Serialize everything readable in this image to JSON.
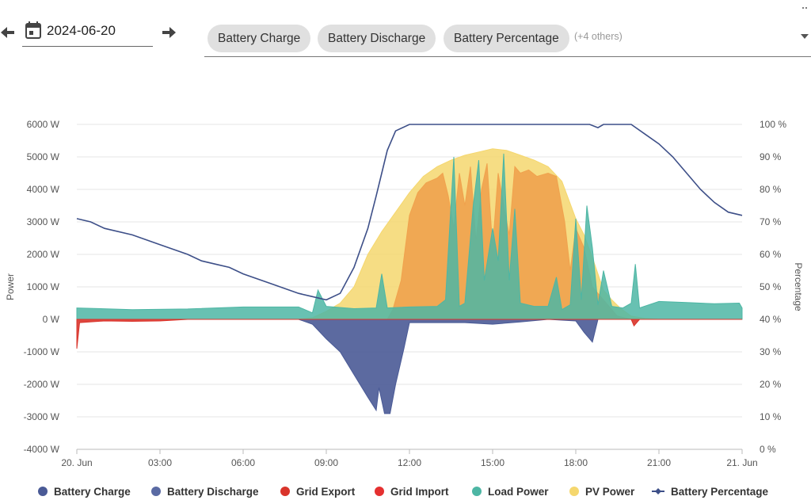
{
  "toolbar": {
    "date": "2024-06-20",
    "chips": [
      "Battery Charge",
      "Battery Discharge",
      "Battery Percentage"
    ],
    "others": "(+4 others)"
  },
  "chart_data": {
    "type": "area",
    "xlabel": "",
    "ylabel": "Power",
    "y2label": "Percentage",
    "x_range_hours": [
      0,
      24
    ],
    "x_ticks": [
      {
        "h": 0,
        "label": "20. Jun"
      },
      {
        "h": 3,
        "label": "03:00"
      },
      {
        "h": 6,
        "label": "06:00"
      },
      {
        "h": 9,
        "label": "09:00"
      },
      {
        "h": 12,
        "label": "12:00"
      },
      {
        "h": 15,
        "label": "15:00"
      },
      {
        "h": 18,
        "label": "18:00"
      },
      {
        "h": 21,
        "label": "21:00"
      },
      {
        "h": 24,
        "label": "21. Jun"
      }
    ],
    "ylim": [
      -4000,
      6000
    ],
    "y_ticks": [
      {
        "v": 6000,
        "label": "6000 W"
      },
      {
        "v": 5000,
        "label": "5000 W"
      },
      {
        "v": 4000,
        "label": "4000 W"
      },
      {
        "v": 3000,
        "label": "3000 W"
      },
      {
        "v": 2000,
        "label": "2000 W"
      },
      {
        "v": 1000,
        "label": "1000 W"
      },
      {
        "v": 0,
        "label": "0 W"
      },
      {
        "v": -1000,
        "label": "-1000 W"
      },
      {
        "v": -2000,
        "label": "-2000 W"
      },
      {
        "v": -3000,
        "label": "-3000 W"
      },
      {
        "v": -4000,
        "label": "-4000 W"
      }
    ],
    "y2lim": [
      0,
      100
    ],
    "y2_ticks": [
      {
        "v": 100,
        "label": "100 %"
      },
      {
        "v": 90,
        "label": "90 %"
      },
      {
        "v": 80,
        "label": "80 %"
      },
      {
        "v": 70,
        "label": "70 %"
      },
      {
        "v": 60,
        "label": "60 %"
      },
      {
        "v": 50,
        "label": "50 %"
      },
      {
        "v": 40,
        "label": "40 %"
      },
      {
        "v": 30,
        "label": "30 %"
      },
      {
        "v": 20,
        "label": "20 %"
      },
      {
        "v": 10,
        "label": "10 %"
      },
      {
        "v": 0,
        "label": "0 %"
      }
    ],
    "grid": true,
    "legend_position": "bottom",
    "series": [
      {
        "name": "PV Power",
        "color": "#f5d76e",
        "axis": "left",
        "points": [
          [
            0,
            0
          ],
          [
            8,
            0
          ],
          [
            8.5,
            50
          ],
          [
            9,
            250
          ],
          [
            9.5,
            500
          ],
          [
            10,
            1000
          ],
          [
            10.5,
            2000
          ],
          [
            11,
            2700
          ],
          [
            11.5,
            3300
          ],
          [
            12,
            3900
          ],
          [
            12.5,
            4400
          ],
          [
            13,
            4700
          ],
          [
            13.5,
            4900
          ],
          [
            14,
            5050
          ],
          [
            14.5,
            5150
          ],
          [
            15,
            5250
          ],
          [
            15.5,
            5200
          ],
          [
            16,
            5050
          ],
          [
            16.5,
            4900
          ],
          [
            17,
            4700
          ],
          [
            17.5,
            4250
          ],
          [
            18,
            3100
          ],
          [
            18.3,
            2600
          ],
          [
            18.6,
            1900
          ],
          [
            19,
            900
          ],
          [
            19.3,
            600
          ],
          [
            19.6,
            350
          ],
          [
            20,
            100
          ],
          [
            20.5,
            30
          ],
          [
            21,
            0
          ],
          [
            24,
            0
          ]
        ]
      },
      {
        "name": "Battery Charge",
        "color": "#f0a24e",
        "axis": "left",
        "points": [
          [
            0,
            0
          ],
          [
            11.2,
            0
          ],
          [
            11.4,
            300
          ],
          [
            11.7,
            1200
          ],
          [
            12,
            3200
          ],
          [
            12.3,
            3900
          ],
          [
            12.6,
            4200
          ],
          [
            13,
            4350
          ],
          [
            13.2,
            4500
          ],
          [
            13.4,
            3800
          ],
          [
            13.6,
            2800
          ],
          [
            13.8,
            4500
          ],
          [
            14,
            3500
          ],
          [
            14.2,
            4700
          ],
          [
            14.4,
            2400
          ],
          [
            14.6,
            4000
          ],
          [
            14.8,
            4800
          ],
          [
            15,
            2200
          ],
          [
            15.2,
            4500
          ],
          [
            15.4,
            3500
          ],
          [
            15.6,
            2600
          ],
          [
            15.8,
            4700
          ],
          [
            16,
            4500
          ],
          [
            16.3,
            4600
          ],
          [
            16.6,
            4400
          ],
          [
            17,
            4500
          ],
          [
            17.3,
            4400
          ],
          [
            17.6,
            3000
          ],
          [
            17.8,
            1500
          ],
          [
            18,
            2800
          ],
          [
            18.3,
            2200
          ],
          [
            18.6,
            1000
          ],
          [
            19,
            600
          ],
          [
            19.5,
            100
          ],
          [
            20,
            0
          ],
          [
            24,
            0
          ]
        ]
      },
      {
        "name": "Load Power",
        "color": "#4db6a4",
        "axis": "left",
        "points": [
          [
            0,
            350
          ],
          [
            2,
            300
          ],
          [
            4,
            320
          ],
          [
            6,
            380
          ],
          [
            8,
            380
          ],
          [
            8.5,
            200
          ],
          [
            8.7,
            900
          ],
          [
            9,
            400
          ],
          [
            10,
            330
          ],
          [
            10.8,
            350
          ],
          [
            11,
            1400
          ],
          [
            11.2,
            350
          ],
          [
            12,
            380
          ],
          [
            13,
            400
          ],
          [
            13.3,
            600
          ],
          [
            13.6,
            5000
          ],
          [
            13.8,
            400
          ],
          [
            14,
            500
          ],
          [
            14.3,
            3500
          ],
          [
            14.5,
            4900
          ],
          [
            14.7,
            1200
          ],
          [
            15,
            2800
          ],
          [
            15.2,
            1800
          ],
          [
            15.4,
            5100
          ],
          [
            15.6,
            1200
          ],
          [
            15.8,
            3400
          ],
          [
            16,
            500
          ],
          [
            16.5,
            400
          ],
          [
            17,
            400
          ],
          [
            17.3,
            1300
          ],
          [
            17.5,
            300
          ],
          [
            17.8,
            450
          ],
          [
            18,
            3100
          ],
          [
            18.2,
            600
          ],
          [
            18.4,
            3500
          ],
          [
            18.6,
            2200
          ],
          [
            18.8,
            450
          ],
          [
            19,
            1500
          ],
          [
            19.3,
            400
          ],
          [
            19.7,
            350
          ],
          [
            20,
            500
          ],
          [
            20.15,
            1700
          ],
          [
            20.3,
            350
          ],
          [
            21,
            550
          ],
          [
            22,
            520
          ],
          [
            23,
            480
          ],
          [
            23.9,
            500
          ],
          [
            24,
            350
          ]
        ]
      },
      {
        "name": "Battery Discharge",
        "color": "#4a5a96",
        "axis": "left",
        "points": [
          [
            0,
            0
          ],
          [
            8,
            0
          ],
          [
            8.5,
            -150
          ],
          [
            9,
            -600
          ],
          [
            9.5,
            -1000
          ],
          [
            10,
            -1700
          ],
          [
            10.5,
            -2400
          ],
          [
            10.8,
            -2800
          ],
          [
            10.9,
            -2100
          ],
          [
            11.1,
            -2900
          ],
          [
            11.3,
            -2900
          ],
          [
            11.5,
            -2000
          ],
          [
            11.8,
            -900
          ],
          [
            12,
            -100
          ],
          [
            13,
            -100
          ],
          [
            14,
            -100
          ],
          [
            15,
            -150
          ],
          [
            16,
            -80
          ],
          [
            17,
            0
          ],
          [
            18,
            -50
          ],
          [
            18.3,
            -400
          ],
          [
            18.6,
            -700
          ],
          [
            18.8,
            0
          ],
          [
            24,
            0
          ]
        ]
      },
      {
        "name": "Grid Export",
        "color": "#d9342b",
        "axis": "left",
        "points": [
          [
            0,
            -900
          ],
          [
            0.1,
            -100
          ],
          [
            1,
            -50
          ],
          [
            2,
            -60
          ],
          [
            3,
            -50
          ],
          [
            4,
            0
          ],
          [
            24,
            0
          ]
        ]
      },
      {
        "name": "Grid Import",
        "color": "#d9342b",
        "axis": "left",
        "points": [
          [
            0,
            0
          ],
          [
            20,
            0
          ],
          [
            20.1,
            -200
          ],
          [
            20.3,
            0
          ],
          [
            24,
            0
          ]
        ]
      },
      {
        "name": "Battery Percentage",
        "color": "#3d4f88",
        "axis": "right",
        "points": [
          [
            0,
            71
          ],
          [
            0.5,
            70
          ],
          [
            1,
            68
          ],
          [
            2,
            66
          ],
          [
            3,
            63
          ],
          [
            4,
            60
          ],
          [
            4.5,
            58
          ],
          [
            5,
            57
          ],
          [
            5.5,
            56
          ],
          [
            6,
            54
          ],
          [
            7,
            51
          ],
          [
            8,
            48
          ],
          [
            8.5,
            47
          ],
          [
            9,
            46
          ],
          [
            9.5,
            48
          ],
          [
            10,
            56
          ],
          [
            10.5,
            68
          ],
          [
            10.8,
            78
          ],
          [
            11,
            85
          ],
          [
            11.2,
            92
          ],
          [
            11.5,
            98
          ],
          [
            12,
            100
          ],
          [
            13,
            100
          ],
          [
            14,
            100
          ],
          [
            15,
            100
          ],
          [
            16,
            100
          ],
          [
            17,
            100
          ],
          [
            18,
            100
          ],
          [
            18.5,
            100
          ],
          [
            18.8,
            99
          ],
          [
            19,
            100
          ],
          [
            20,
            100
          ],
          [
            20.5,
            97
          ],
          [
            21,
            94
          ],
          [
            21.5,
            90
          ],
          [
            22,
            85
          ],
          [
            22.5,
            80
          ],
          [
            23,
            76
          ],
          [
            23.5,
            73
          ],
          [
            24,
            72
          ]
        ]
      }
    ]
  },
  "legend": [
    {
      "name": "Battery Charge",
      "color": "#4a5a96",
      "kind": "dot"
    },
    {
      "name": "Battery Discharge",
      "color": "#5a6aa3",
      "kind": "dot"
    },
    {
      "name": "Grid Export",
      "color": "#d9342b",
      "kind": "dot"
    },
    {
      "name": "Grid Import",
      "color": "#e53030",
      "kind": "dot"
    },
    {
      "name": "Load Power",
      "color": "#4db6a4",
      "kind": "dot"
    },
    {
      "name": "PV Power",
      "color": "#f5d76e",
      "kind": "dot"
    },
    {
      "name": "Battery Percentage",
      "color": "#3d4f88",
      "kind": "line"
    }
  ]
}
